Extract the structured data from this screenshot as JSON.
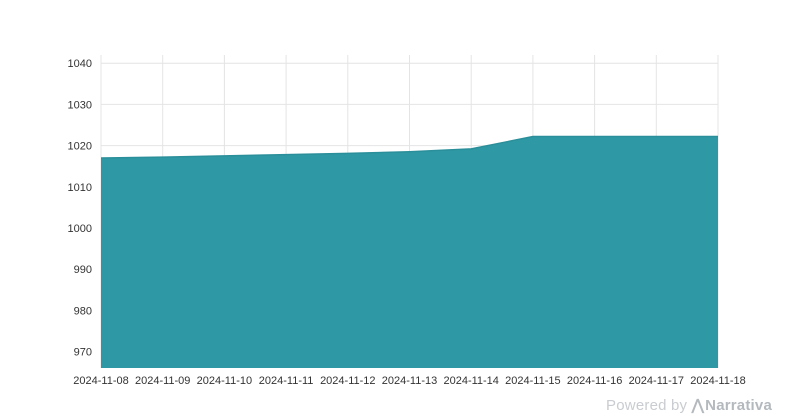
{
  "chart_data": {
    "type": "area",
    "title": "",
    "xlabel": "",
    "ylabel": "",
    "x": [
      "2024-11-08",
      "2024-11-09",
      "2024-11-10",
      "2024-11-11",
      "2024-11-12",
      "2024-11-13",
      "2024-11-14",
      "2024-11-15",
      "2024-11-16",
      "2024-11-17",
      "2024-11-18"
    ],
    "values": [
      1017.0,
      1017.2,
      1017.5,
      1017.8,
      1018.1,
      1018.5,
      1019.2,
      1022.2,
      1022.2,
      1022.2,
      1022.2
    ],
    "ylim": [
      966,
      1042
    ],
    "yticks": [
      970,
      980,
      990,
      1000,
      1010,
      1020,
      1030,
      1040
    ],
    "grid": true,
    "legend": "none",
    "area_color": "#2e99a4",
    "area_edge_color": "#2a8f9a",
    "grid_color": "#e4e4e4",
    "tick_label_color": "#333333",
    "background_color": "#ffffff"
  },
  "footer": {
    "powered_by": "Powered by",
    "logo_glyph": "⋀",
    "brand": "Narrativa"
  }
}
